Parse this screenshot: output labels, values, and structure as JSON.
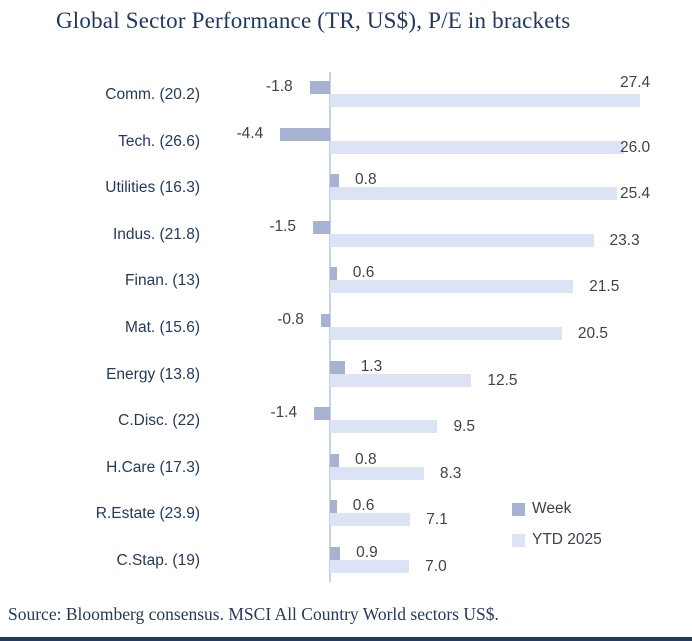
{
  "source": "Source: Bloomberg consensus. MSCI All Country World sectors US$.",
  "colors": {
    "week_bar": "#a7b1d1",
    "ytd_bar": "#dce3f4",
    "axis": "#c4d3ec",
    "title_text": "#1f3864",
    "category_text": "#24395e",
    "value_text": "#3f434b",
    "bottom_rule": "#24395f"
  },
  "chart_data": {
    "type": "bar",
    "orientation": "horizontal",
    "title": "Global Sector Performance (TR, US$), P/E in brackets",
    "categories": [
      "Comm. (20.2)",
      "Tech. (26.6)",
      "Utilities (16.3)",
      "Indus. (21.8)",
      "Finan. (13)",
      "Mat. (15.6)",
      "Energy (13.8)",
      "C.Disc. (22)",
      "H.Care (17.3)",
      "R.Estate (23.9)",
      "C.Stap. (19)"
    ],
    "series": [
      {
        "name": "Week",
        "color": "#a7b1d1",
        "values": [
          -1.8,
          -4.4,
          0.8,
          -1.5,
          0.6,
          -0.8,
          1.3,
          -1.4,
          0.8,
          0.6,
          0.9
        ]
      },
      {
        "name": "YTD 2025",
        "color": "#dce3f4",
        "values": [
          27.4,
          26.0,
          25.4,
          23.3,
          21.5,
          20.5,
          12.5,
          9.5,
          8.3,
          7.1,
          7.0
        ]
      }
    ],
    "value_labels": true,
    "xlim": [
      -5,
      29
    ],
    "grid": false,
    "legend_position": "bottom-right",
    "xlabel": "",
    "ylabel": ""
  }
}
